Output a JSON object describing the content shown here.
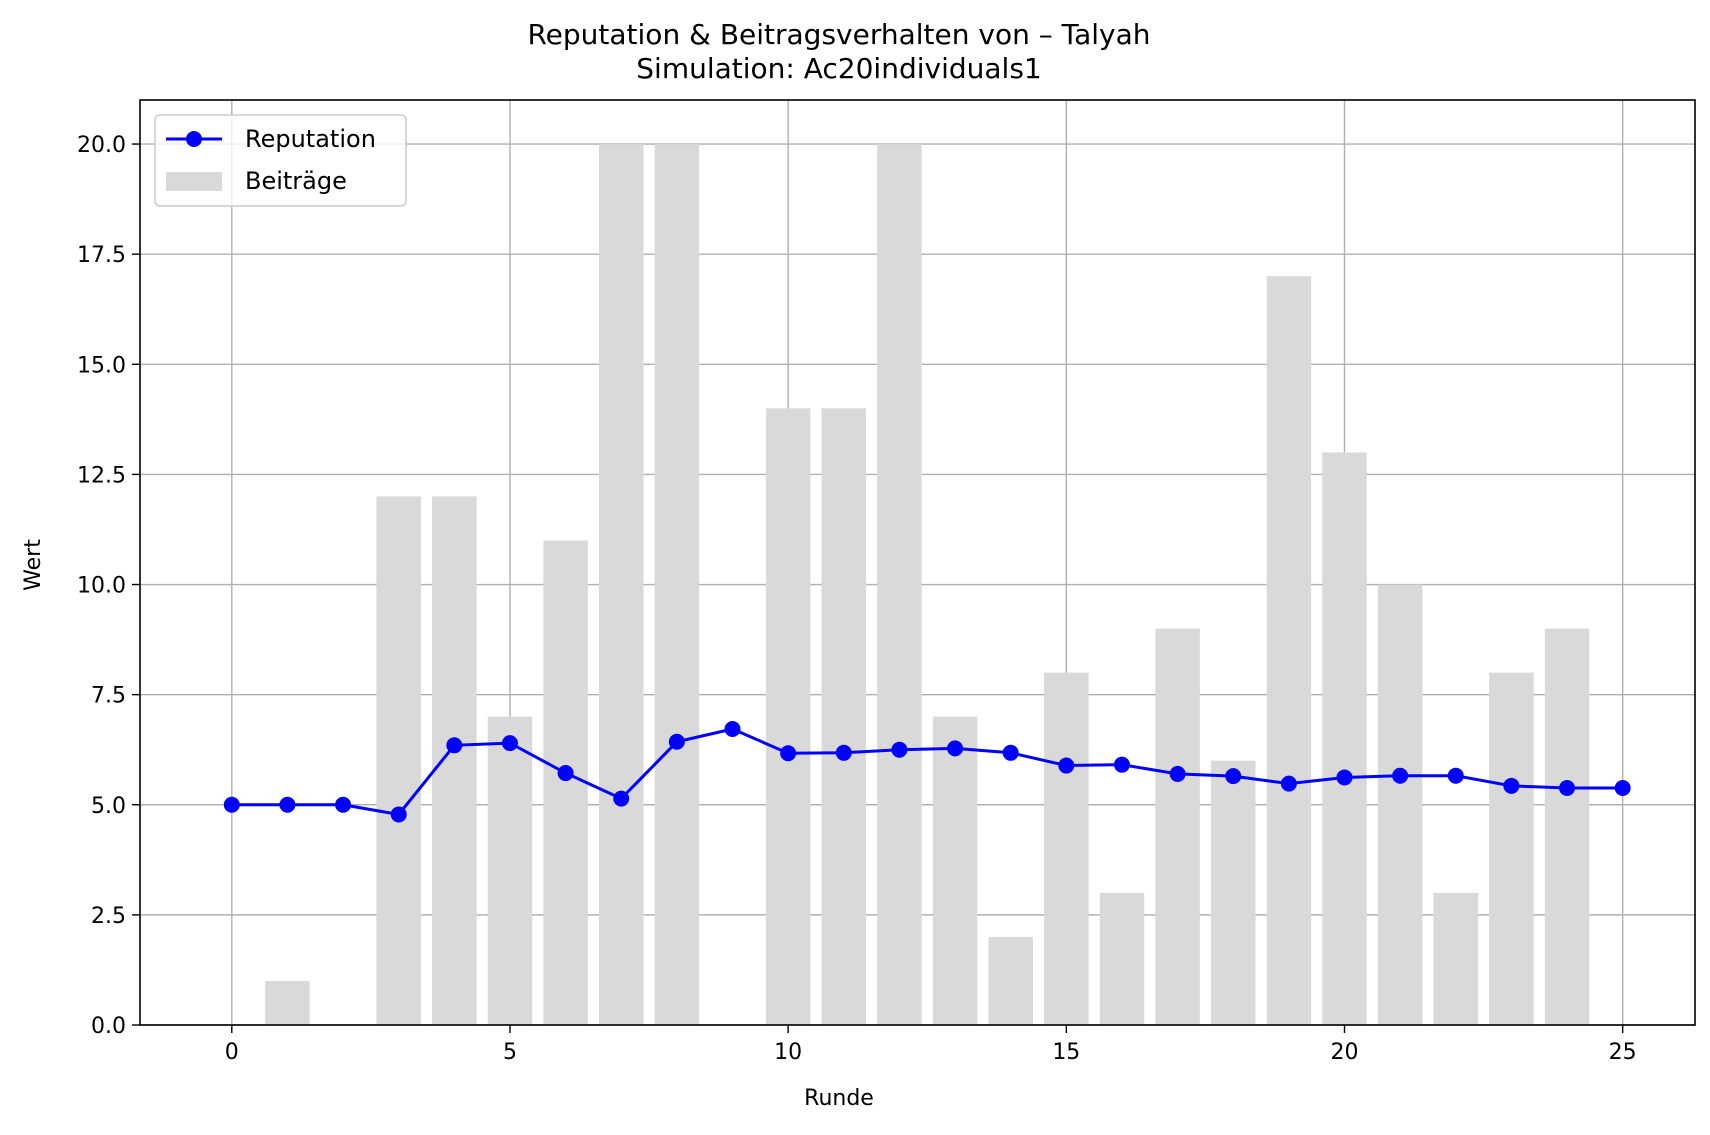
{
  "chart_data": {
    "type": "bar",
    "title": "Reputation & Beitragsverhalten von – Talyah",
    "subtitle": "Simulation: Ac20individuals1",
    "xlabel": "Runde",
    "ylabel": "Wert",
    "xlim": [
      -1.65,
      26.3
    ],
    "ylim": [
      0,
      21
    ],
    "x_ticks": [
      0,
      5,
      10,
      15,
      20,
      25
    ],
    "x_tick_labels": [
      "0",
      "5",
      "10",
      "15",
      "20",
      "25"
    ],
    "y_ticks": [
      0,
      2.5,
      5,
      7.5,
      10,
      12.5,
      15,
      17.5,
      20
    ],
    "y_tick_labels": [
      "0.0",
      "2.5",
      "5.0",
      "7.5",
      "10.0",
      "12.5",
      "15.0",
      "17.5",
      "20.0"
    ],
    "grid": true,
    "legend_position": "upper left",
    "rounds": [
      0,
      1,
      2,
      3,
      4,
      5,
      6,
      7,
      8,
      9,
      10,
      11,
      12,
      13,
      14,
      15,
      16,
      17,
      18,
      19,
      20,
      21,
      22,
      23,
      24,
      25
    ],
    "series": [
      {
        "name": "Beiträge",
        "kind": "bar",
        "color": "#d9d9d9",
        "values": [
          0,
          1,
          0,
          12,
          12,
          7,
          11,
          20,
          20,
          0,
          14,
          14,
          20,
          7,
          2,
          8,
          3,
          9,
          6,
          17,
          13,
          10,
          3,
          8,
          9,
          0
        ]
      },
      {
        "name": "Reputation",
        "kind": "line",
        "color": "#0000ff",
        "marker": "circle",
        "values": [
          5.0,
          5.0,
          5.0,
          4.78,
          6.35,
          6.4,
          5.72,
          5.14,
          6.43,
          6.72,
          6.17,
          6.18,
          6.25,
          6.28,
          6.18,
          5.89,
          5.91,
          5.7,
          5.65,
          5.48,
          5.62,
          5.66,
          5.66,
          5.43,
          5.38,
          5.38
        ]
      }
    ]
  }
}
